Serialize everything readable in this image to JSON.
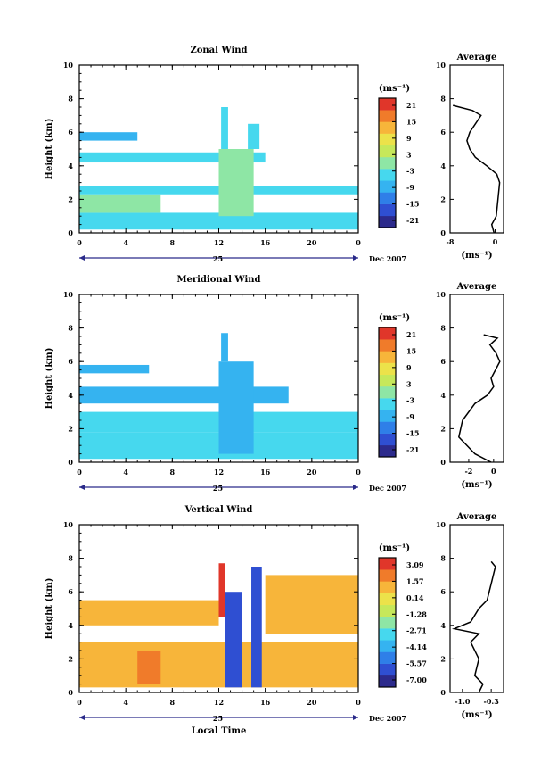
{
  "colormap": [
    "#2c2a8c",
    "#2f4fd2",
    "#2f7fe8",
    "#35b3f0",
    "#46d8ee",
    "#8ee6a5",
    "#c6e85a",
    "#ece24a",
    "#f7b53a",
    "#f07b2a",
    "#e0362a"
  ],
  "date_label": "Dec 2007",
  "day_label": "25",
  "chart_data": [
    {
      "type": "heatmap",
      "title": "Zonal Wind",
      "xlabel": "",
      "ylabel": "Height (km)",
      "x_ticks": [
        "0",
        "4",
        "8",
        "12",
        "16",
        "20",
        "0"
      ],
      "x_range": [
        0,
        24
      ],
      "ylim": [
        0,
        10
      ],
      "y_ticks": [
        "0",
        "2",
        "4",
        "6",
        "8",
        "10"
      ],
      "colorbar": {
        "unit": "(ms⁻¹)",
        "ticks": [
          "21",
          "15",
          "9",
          "3",
          "-3",
          "-9",
          "-15",
          "-21"
        ],
        "range": [
          -24,
          24
        ]
      },
      "cells": [
        {
          "t0": 0,
          "t1": 24,
          "h0": 0.2,
          "h1": 1.2,
          "v": -6
        },
        {
          "t0": 0,
          "t1": 7,
          "h0": 1.2,
          "h1": 2.3,
          "v": -1
        },
        {
          "t0": 0,
          "t1": 24,
          "h0": 2.3,
          "h1": 2.8,
          "v": -4
        },
        {
          "t0": 0,
          "t1": 16,
          "h0": 4.2,
          "h1": 4.8,
          "v": -5
        },
        {
          "t0": 0,
          "t1": 5,
          "h0": 5.5,
          "h1": 6.0,
          "v": -8
        },
        {
          "t0": 12,
          "t1": 15,
          "h0": 1.0,
          "h1": 5.0,
          "v": 0
        },
        {
          "t0": 12.2,
          "t1": 12.8,
          "h0": 5.0,
          "h1": 7.5,
          "v": -6
        },
        {
          "t0": 14.5,
          "t1": 15.5,
          "h0": 5.0,
          "h1": 6.5,
          "v": -5
        }
      ],
      "average_profile": {
        "title": "Average",
        "xlabel": "(ms⁻¹)",
        "x_ticks": [
          "-8",
          "0"
        ],
        "xlim": [
          -8,
          1.5
        ],
        "points": [
          [
            -0.2,
            0
          ],
          [
            -0.6,
            0.5
          ],
          [
            0.2,
            1.0
          ],
          [
            0.5,
            2.0
          ],
          [
            0.8,
            3.0
          ],
          [
            0.3,
            3.5
          ],
          [
            -1.5,
            4.0
          ],
          [
            -3.5,
            4.5
          ],
          [
            -4.5,
            5.0
          ],
          [
            -5.0,
            5.5
          ],
          [
            -4.5,
            6.0
          ],
          [
            -3.5,
            6.5
          ],
          [
            -2.5,
            7.0
          ],
          [
            -4.0,
            7.3
          ],
          [
            -7.5,
            7.6
          ]
        ]
      }
    },
    {
      "type": "heatmap",
      "title": "Meridional Wind",
      "xlabel": "",
      "ylabel": "Height (km)",
      "x_ticks": [
        "0",
        "4",
        "8",
        "12",
        "16",
        "20",
        "0"
      ],
      "x_range": [
        0,
        24
      ],
      "ylim": [
        0,
        10
      ],
      "y_ticks": [
        "0",
        "2",
        "4",
        "6",
        "8",
        "10"
      ],
      "colorbar": {
        "unit": "(ms⁻¹)",
        "ticks": [
          "21",
          "15",
          "9",
          "3",
          "-3",
          "-9",
          "-15",
          "-21"
        ],
        "range": [
          -24,
          24
        ]
      },
      "cells": [
        {
          "t0": 0,
          "t1": 24,
          "h0": 0.2,
          "h1": 1.8,
          "v": -6
        },
        {
          "t0": 0,
          "t1": 24,
          "h0": 1.8,
          "h1": 3.0,
          "v": -3
        },
        {
          "t0": 0,
          "t1": 18,
          "h0": 3.5,
          "h1": 4.5,
          "v": -7
        },
        {
          "t0": 0,
          "t1": 6,
          "h0": 5.3,
          "h1": 5.8,
          "v": -8
        },
        {
          "t0": 12,
          "t1": 15,
          "h0": 0.5,
          "h1": 6.0,
          "v": -8
        },
        {
          "t0": 12.2,
          "t1": 12.8,
          "h0": 6.0,
          "h1": 7.7,
          "v": -9
        }
      ],
      "average_profile": {
        "title": "Average",
        "xlabel": "(ms⁻¹)",
        "x_ticks": [
          "-2",
          "0"
        ],
        "xlim": [
          -3.5,
          0.8
        ],
        "points": [
          [
            -0.2,
            0
          ],
          [
            -1.5,
            0.5
          ],
          [
            -2.8,
            1.5
          ],
          [
            -2.5,
            2.5
          ],
          [
            -1.5,
            3.5
          ],
          [
            -0.5,
            4.0
          ],
          [
            0.0,
            4.5
          ],
          [
            -0.2,
            5.0
          ],
          [
            0.5,
            6.0
          ],
          [
            0.2,
            6.5
          ],
          [
            -0.3,
            7.0
          ],
          [
            0.3,
            7.4
          ],
          [
            -0.8,
            7.6
          ]
        ]
      }
    },
    {
      "type": "heatmap",
      "title": "Vertical Wind",
      "xlabel": "Local Time",
      "ylabel": "Height (km)",
      "x_ticks": [
        "0",
        "4",
        "8",
        "12",
        "16",
        "20",
        "0"
      ],
      "x_range": [
        0,
        24
      ],
      "ylim": [
        0,
        10
      ],
      "y_ticks": [
        "0",
        "2",
        "4",
        "6",
        "8",
        "10"
      ],
      "colorbar": {
        "unit": "(ms⁻¹)",
        "ticks": [
          "3.09",
          "1.57",
          "0.14",
          "-1.28",
          "-2.71",
          "-4.14",
          "-5.57",
          "-7.00"
        ],
        "range": [
          -8.0,
          4.0
        ]
      },
      "cells": [
        {
          "t0": 0,
          "t1": 24,
          "h0": 0.3,
          "h1": 3.0,
          "v": 1.0
        },
        {
          "t0": 0,
          "t1": 12,
          "h0": 4.0,
          "h1": 5.5,
          "v": 0.9
        },
        {
          "t0": 16,
          "t1": 24,
          "h0": 3.5,
          "h1": 7.0,
          "v": 1.0
        },
        {
          "t0": 5,
          "t1": 7,
          "h0": 0.5,
          "h1": 2.5,
          "v": 2.0
        },
        {
          "t0": 12,
          "t1": 12.5,
          "h0": 4.5,
          "h1": 7.7,
          "v": 3.0
        },
        {
          "t0": 12.5,
          "t1": 14,
          "h0": 0.3,
          "h1": 6.0,
          "v": -6.0
        },
        {
          "t0": 14.8,
          "t1": 15.7,
          "h0": 0.3,
          "h1": 7.5,
          "v": -6.5
        }
      ],
      "average_profile": {
        "title": "Average",
        "xlabel": "(ms⁻¹)",
        "x_ticks": [
          "-1.0",
          "-0.3"
        ],
        "xlim": [
          -1.3,
          0.0
        ],
        "points": [
          [
            -0.6,
            0
          ],
          [
            -0.5,
            0.5
          ],
          [
            -0.7,
            1.0
          ],
          [
            -0.6,
            2.0
          ],
          [
            -0.8,
            3.0
          ],
          [
            -0.6,
            3.5
          ],
          [
            -1.2,
            3.8
          ],
          [
            -0.8,
            4.2
          ],
          [
            -0.6,
            5.0
          ],
          [
            -0.4,
            5.5
          ],
          [
            -0.3,
            6.5
          ],
          [
            -0.2,
            7.5
          ],
          [
            -0.3,
            7.8
          ]
        ]
      }
    }
  ]
}
